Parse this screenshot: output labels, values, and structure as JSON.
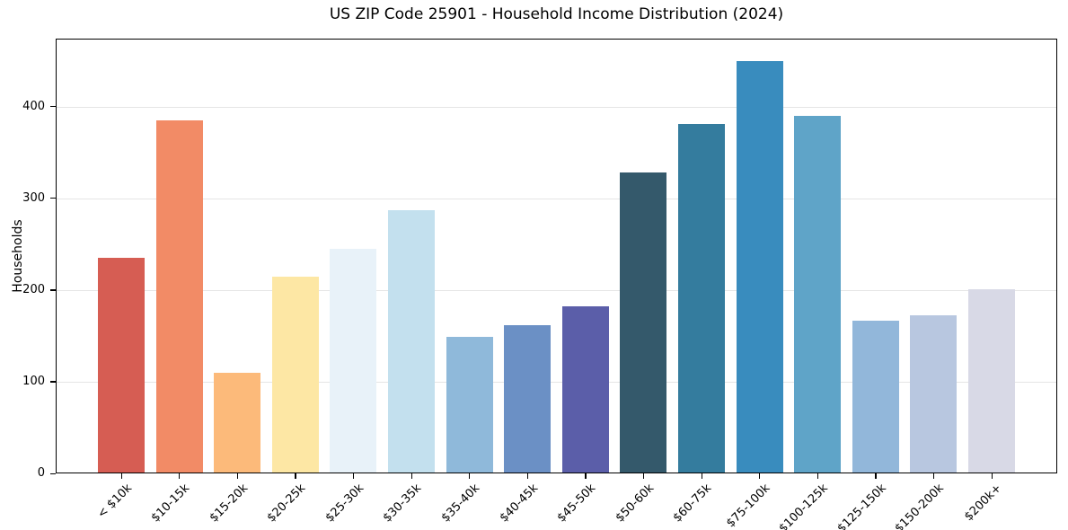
{
  "chart_data": {
    "type": "bar",
    "title": "US ZIP Code 25901 - Household Income Distribution (2024)",
    "xlabel": "",
    "ylabel": "Households",
    "categories": [
      "< $10k",
      "$10-15k",
      "$15-20k",
      "$20-25k",
      "$25-30k",
      "$30-35k",
      "$35-40k",
      "$40-45k",
      "$45-50k",
      "$50-60k",
      "$60-75k",
      "$75-100k",
      "$100-125k",
      "$125-150k",
      "$150-200k",
      "$200k+"
    ],
    "values": [
      235,
      385,
      110,
      214,
      245,
      287,
      149,
      162,
      182,
      328,
      381,
      450,
      390,
      166,
      172,
      201
    ],
    "bar_colors": [
      "#d65d53",
      "#f28b66",
      "#fcba7a",
      "#fde7a4",
      "#e8f2f9",
      "#c3e0ee",
      "#8fb9da",
      "#6b90c5",
      "#5b5ea9",
      "#34596b",
      "#347c9e",
      "#398cbe",
      "#5fa4c8",
      "#92b7da",
      "#b8c7e0",
      "#d8d9e6"
    ],
    "yticks": [
      0,
      100,
      200,
      300,
      400
    ],
    "ylim": [
      0,
      474
    ],
    "grid": true,
    "grid_color": "#e5e5e5",
    "spine_color": "#000000",
    "background_color": "#ffffff",
    "legend": "none",
    "x_tick_rotation_deg": 45
  }
}
